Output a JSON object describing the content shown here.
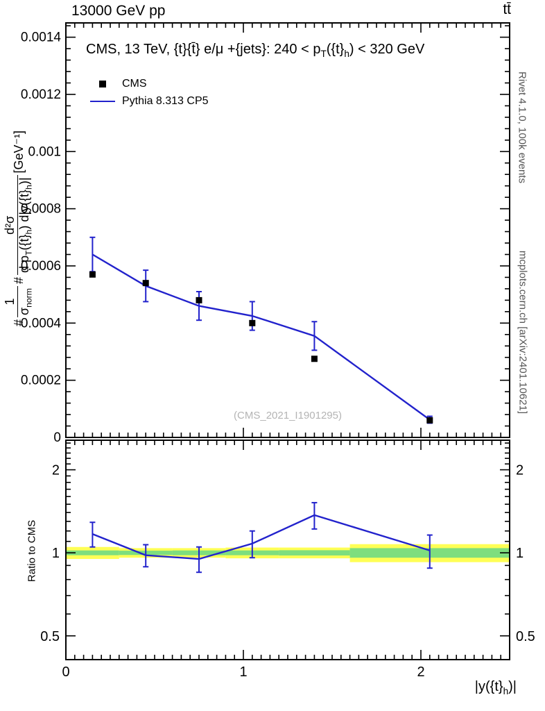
{
  "header": {
    "left": "13000 GeV pp",
    "right": "tt̄"
  },
  "side_labels": {
    "top": "Rivet 4.1.0,  100k events",
    "bottom": "mcplots.cern.ch [arXiv:2401.10621]"
  },
  "watermark": "(CMS_2021_I1901295)",
  "ratio_ylabel": "Ratio to CMS",
  "chart_data": {
    "type": "line",
    "title": "CMS, 13 TeV, {t}{t̄} e/μ +{jets}: 240 < p_T({t}_h) < 320 GeV",
    "title_parts": {
      "p1": "CMS, 13 TeV, {t}{t̄} e/μ +{jets}: 240 < p",
      "s1": "T",
      "p2": "({t}",
      "s2": "h",
      "p3": ") < 320 GeV"
    },
    "xlabel": "|y({t}_h)|",
    "xlabel_parts": {
      "p1": "|y({t}",
      "s1": "h",
      "p2": ")|"
    },
    "ylabel": "#1/σ_norm #d²σ/(d p_T({t}_h) d|y({t}_h)|) [GeV⁻¹]",
    "ylabel_parts": {
      "h1": "#",
      "f1n": "1",
      "f1d": "σ",
      "f1dsub": "norm",
      "h2": "#",
      "f2n": "d²σ",
      "f2d1": "d p",
      "f2dsub1": "T",
      "f2d2": "({t}",
      "f2dsub2": "h",
      "f2d3": ") d|y({t}",
      "f2dsub3": "h",
      "f2d4": ")|",
      "units": "[GeV⁻¹]"
    },
    "x_range": [
      0,
      2.5
    ],
    "y_range": [
      0,
      0.00145
    ],
    "ratio_range": [
      0.41,
      2.56
    ],
    "grid": false,
    "legend_position": "top-left",
    "x_ticks": [
      {
        "v": 0,
        "label": "0"
      },
      {
        "v": 1,
        "label": "1"
      },
      {
        "v": 2,
        "label": "2"
      }
    ],
    "x_minor_step": 0.05,
    "y_ticks": [
      {
        "v": 0,
        "label": "0"
      },
      {
        "v": 0.0002,
        "label": "0.0002"
      },
      {
        "v": 0.0004,
        "label": "0.0004"
      },
      {
        "v": 0.0006,
        "label": "0.0006"
      },
      {
        "v": 0.0008,
        "label": "0.0008"
      },
      {
        "v": 0.001,
        "label": "0.001"
      },
      {
        "v": 0.0012,
        "label": "0.0012"
      },
      {
        "v": 0.0014,
        "label": "0.0014"
      }
    ],
    "y_minor_step": 4e-05,
    "ratio_ticks": [
      {
        "v": 0.5,
        "label": "0.5"
      },
      {
        "v": 1,
        "label": "1"
      },
      {
        "v": 2,
        "label": "2"
      }
    ],
    "ratio_minor_ticks": [
      0.6,
      0.7,
      0.8,
      0.9,
      1.1,
      1.2,
      1.3,
      1.4,
      1.5,
      1.6,
      1.7,
      1.8,
      1.9,
      2.1,
      2.2,
      2.3,
      2.4,
      2.5
    ],
    "x": [
      0.15,
      0.45,
      0.75,
      1.05,
      1.4,
      2.05
    ],
    "series": [
      {
        "name": "CMS",
        "type": "points",
        "color": "#000000",
        "y": [
          0.00057,
          0.00054,
          0.00048,
          0.0004,
          0.000275,
          6e-05
        ]
      },
      {
        "name": "Pythia 8.313 CP5",
        "type": "line",
        "color": "#2222cc",
        "y": [
          0.00064,
          0.00053,
          0.00046,
          0.000425,
          0.000355,
          6.2e-05
        ],
        "yerr": [
          6e-05,
          5.5e-05,
          5e-05,
          5e-05,
          5e-05,
          1.2e-05
        ]
      }
    ],
    "ratio": {
      "y": [
        1.17,
        0.98,
        0.95,
        1.08,
        1.37,
        1.02
      ],
      "yerr": [
        0.12,
        0.09,
        0.1,
        0.12,
        0.15,
        0.14
      ],
      "band_bins": [
        {
          "x0": 0.0,
          "x1": 0.3,
          "yellow": [
            0.95,
            1.05
          ],
          "green": [
            0.98,
            1.02
          ]
        },
        {
          "x0": 0.3,
          "x1": 0.6,
          "yellow": [
            0.96,
            1.04
          ],
          "green": [
            0.982,
            1.018
          ]
        },
        {
          "x0": 0.6,
          "x1": 0.9,
          "yellow": [
            0.96,
            1.04
          ],
          "green": [
            0.98,
            1.02
          ]
        },
        {
          "x0": 0.9,
          "x1": 1.2,
          "yellow": [
            0.955,
            1.045
          ],
          "green": [
            0.98,
            1.02
          ]
        },
        {
          "x0": 1.2,
          "x1": 1.6,
          "yellow": [
            0.955,
            1.045
          ],
          "green": [
            0.978,
            1.022
          ]
        },
        {
          "x0": 1.6,
          "x1": 2.5,
          "yellow": [
            0.925,
            1.075
          ],
          "green": [
            0.96,
            1.04
          ]
        }
      ]
    },
    "colors": {
      "line": "#2222cc",
      "marker": "#000000",
      "band_yellow": "#ffff55",
      "band_green": "#7ede7e",
      "frame": "#000000",
      "watermark": "#b4b4b4",
      "side_text": "#555555"
    }
  }
}
